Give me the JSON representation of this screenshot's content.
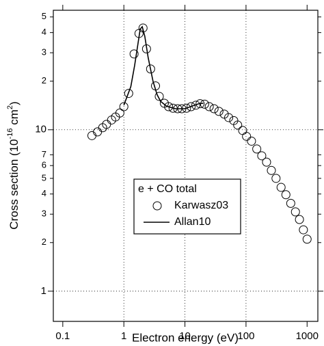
{
  "chart_data": {
    "type": "scatter-line",
    "xlabel": "Electron energy (eV)",
    "ylabel": [
      "Cross section (10",
      "-16",
      " cm",
      "2",
      ")"
    ],
    "xlog": true,
    "ylog": true,
    "xlim": [
      0.07,
      1500
    ],
    "ylim": [
      0.65,
      55
    ],
    "xticks": [
      0.1,
      1,
      10,
      100,
      1000
    ],
    "yticks": [
      1,
      2,
      3,
      4,
      5,
      6,
      7,
      10,
      {
        "value": 20,
        "label": "2"
      },
      {
        "value": 30,
        "label": "3"
      },
      {
        "value": 40,
        "label": "4"
      },
      {
        "value": 50,
        "label": "5"
      }
    ],
    "xgrid": [
      1,
      10,
      100
    ],
    "ygrid": [
      1,
      10
    ],
    "legend_title": "e + CO  total",
    "series": [
      {
        "name": "Karwasz03",
        "marker": "circle",
        "color": "#000000",
        "x": [
          0.3,
          0.37,
          0.45,
          0.52,
          0.63,
          0.73,
          0.86,
          1.0,
          1.2,
          1.47,
          1.77,
          2.06,
          2.35,
          2.74,
          3.3,
          3.8,
          4.6,
          5.4,
          6.4,
          7.6,
          8.9,
          10.6,
          12.6,
          15.1,
          17.7,
          21,
          25,
          30,
          36,
          44,
          52,
          63,
          73,
          88,
          102,
          123,
          150,
          181,
          217,
          260,
          310,
          375,
          450,
          540,
          645,
          750,
          870,
          1000
        ],
        "values": [
          9.2,
          9.7,
          10.3,
          10.8,
          11.5,
          12.0,
          12.7,
          13.9,
          16.8,
          29.5,
          39.5,
          42.7,
          31.7,
          23.8,
          18.7,
          16.1,
          14.6,
          13.9,
          13.6,
          13.5,
          13.5,
          13.6,
          13.9,
          14.2,
          14.5,
          14.4,
          13.9,
          13.5,
          13.0,
          12.5,
          11.9,
          11.4,
          10.7,
          9.9,
          9.1,
          8.5,
          7.6,
          6.9,
          6.3,
          5.6,
          5.0,
          4.4,
          3.96,
          3.5,
          3.1,
          2.78,
          2.4,
          2.1
        ]
      },
      {
        "name": "Allan10",
        "marker": "line",
        "color": "#000000",
        "x": [
          1.0,
          1.3,
          1.5,
          1.7,
          1.85,
          2.0,
          2.2,
          2.5,
          3.0,
          3.5,
          4,
          5,
          7,
          10,
          13,
          17,
          20
        ],
        "values": [
          14.2,
          18.5,
          25,
          34,
          42,
          43.5,
          38,
          28,
          20,
          16.5,
          15,
          14,
          13.5,
          13.5,
          14,
          14.5,
          14.6
        ]
      }
    ]
  }
}
